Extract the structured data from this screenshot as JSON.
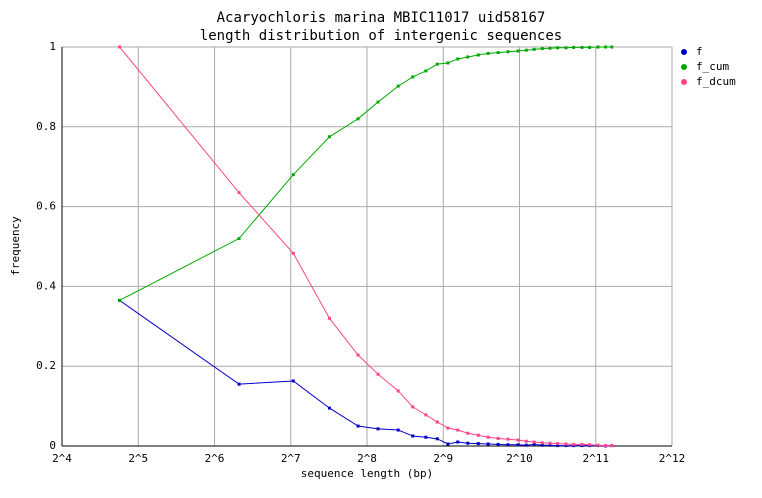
{
  "chart_data": {
    "type": "line",
    "title": "Acaryochloris marina MBIC11017 uid58167",
    "subtitle": "length distribution of intergenic sequences",
    "x_label": "sequence length (bp)",
    "y_label": "frequency",
    "x_scale": "log2",
    "xlim": [
      16,
      4096
    ],
    "xticks": [
      {
        "value": 16,
        "label": "2^4"
      },
      {
        "value": 32,
        "label": "2^5"
      },
      {
        "value": 64,
        "label": "2^6"
      },
      {
        "value": 128,
        "label": "2^7"
      },
      {
        "value": 256,
        "label": "2^8"
      },
      {
        "value": 512,
        "label": "2^9"
      },
      {
        "value": 1024,
        "label": "2^10"
      },
      {
        "value": 2048,
        "label": "2^11"
      },
      {
        "value": 4096,
        "label": "2^12"
      }
    ],
    "ylim": [
      0,
      1
    ],
    "yticks": [
      0,
      0.2,
      0.4,
      0.6,
      0.8,
      1
    ],
    "grid": true,
    "legend": "right",
    "x": [
      27,
      80,
      131,
      182,
      236,
      283,
      340,
      388,
      437,
      485,
      534,
      584,
      640,
      704,
      770,
      843,
      922,
      1010,
      1089,
      1170,
      1260,
      1351,
      1448,
      1563,
      1675,
      1807,
      1937,
      2090,
      2240,
      2368
    ],
    "series": [
      {
        "name": "f",
        "color": "#0000cc",
        "values": [
          0.365,
          0.155,
          0.163,
          0.095,
          0.05,
          0.043,
          0.04,
          0.025,
          0.022,
          0.018,
          0.005,
          0.01,
          0.007,
          0.006,
          0.005,
          0.004,
          0.003,
          0.003,
          0.002,
          0.004,
          0.002,
          0.002,
          0.001,
          0.001,
          0.001,
          0.001,
          0.001,
          0.001,
          0.0,
          0.001
        ]
      },
      {
        "name": "f_cum",
        "color": "#00aa00",
        "values": [
          0.365,
          0.52,
          0.68,
          0.775,
          0.82,
          0.862,
          0.902,
          0.925,
          0.94,
          0.957,
          0.96,
          0.97,
          0.975,
          0.98,
          0.984,
          0.986,
          0.988,
          0.99,
          0.992,
          0.994,
          0.996,
          0.997,
          0.998,
          0.998,
          0.999,
          0.999,
          0.999,
          1.0,
          1.0,
          1.0
        ]
      },
      {
        "name": "f_dcum",
        "color": "#ff4488",
        "values": [
          1.0,
          0.635,
          0.483,
          0.32,
          0.228,
          0.18,
          0.138,
          0.098,
          0.078,
          0.06,
          0.045,
          0.04,
          0.032,
          0.027,
          0.022,
          0.019,
          0.017,
          0.015,
          0.012,
          0.01,
          0.008,
          0.007,
          0.006,
          0.005,
          0.004,
          0.004,
          0.003,
          0.002,
          0.001,
          0.001
        ]
      }
    ]
  }
}
